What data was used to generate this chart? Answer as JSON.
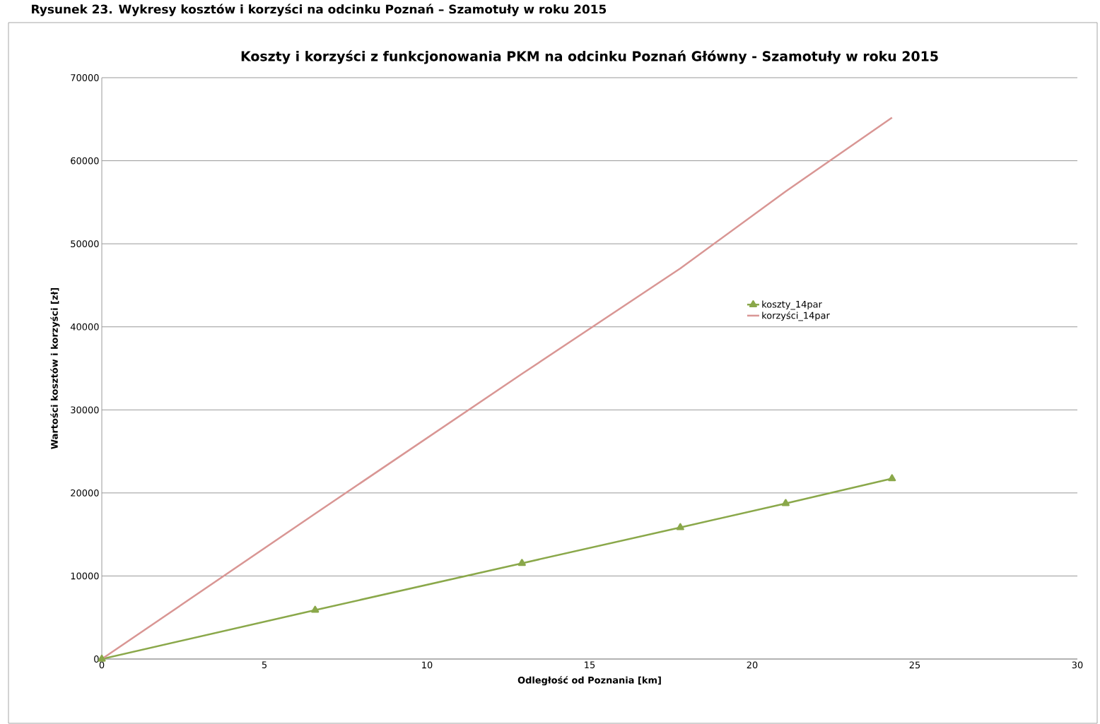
{
  "chart_data": {
    "type": "line",
    "title": "Koszty i korzyści z funkcjonowania PKM na odcinku Poznań Główny  - Szamotuły w roku 2015",
    "xlabel": "Odległość od Poznania  [km]",
    "ylabel": "Wartości kosztów  i korzyści [zł]",
    "annotations": [
      "Rysunek 23. Wykresy kosztów i korzyści na odcinku Poznań – Szamotuły w roku 2015"
    ],
    "x": [
      0,
      6.56,
      12.92,
      17.79,
      21.03,
      24.3
    ],
    "series": [
      {
        "name": "koszty_14par",
        "color": "#8aa84a",
        "marker": "triangle",
        "values": [
          0,
          5890,
          11530,
          15840,
          18740,
          21730
        ]
      },
      {
        "name": "korzyści_14par",
        "color": "#d99694",
        "marker": "none",
        "values": [
          0,
          17500,
          34340,
          47030,
          56310,
          65190
        ]
      }
    ],
    "xlim": [
      0,
      30
    ],
    "xticks": [
      0,
      5,
      10,
      15,
      20,
      25,
      30
    ],
    "ylim": [
      0,
      70000
    ],
    "yticks": [
      0,
      10000,
      20000,
      30000,
      40000,
      50000,
      60000,
      70000
    ],
    "grid": "y",
    "legend": "right",
    "line_style": "solid"
  }
}
